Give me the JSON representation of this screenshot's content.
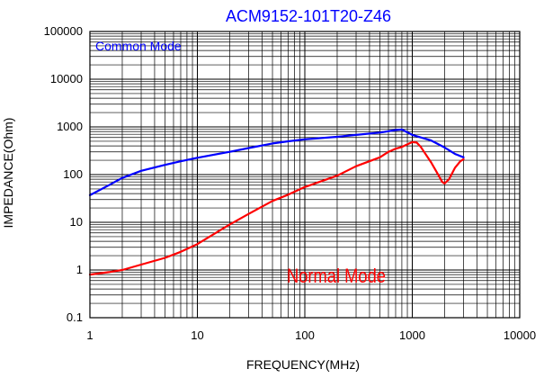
{
  "chart_data": {
    "type": "line",
    "title": "ACM9152-101T20-Z46",
    "xlabel": "FREQUENCY(MHz)",
    "ylabel": "IMPEDANCE(Ohm)",
    "x_scale": "log",
    "y_scale": "log",
    "xlim": [
      1,
      10000
    ],
    "ylim": [
      0.1,
      100000
    ],
    "x_ticks": [
      "1",
      "10",
      "100",
      "1000",
      "10000"
    ],
    "y_ticks": [
      "0.1",
      "1",
      "10",
      "100",
      "1000",
      "10000",
      "100000"
    ],
    "grid": true,
    "title_color": "#0000ff",
    "series": [
      {
        "name": "Common Mode",
        "color": "#0000ff",
        "x": [
          1,
          1.5,
          2,
          3,
          5,
          7,
          10,
          20,
          30,
          50,
          70,
          100,
          200,
          300,
          500,
          700,
          800,
          1000,
          1500,
          2000,
          2500,
          3000
        ],
        "y": [
          37,
          60,
          85,
          120,
          160,
          190,
          225,
          300,
          360,
          450,
          500,
          550,
          620,
          680,
          760,
          860,
          880,
          680,
          520,
          370,
          270,
          230
        ]
      },
      {
        "name": "Normal Mode",
        "color": "#ff0000",
        "x": [
          1,
          1.5,
          2,
          3,
          5,
          7,
          10,
          20,
          30,
          50,
          70,
          100,
          200,
          300,
          500,
          600,
          700,
          800,
          900,
          1000,
          1100,
          1200,
          1500,
          1700,
          1900,
          2000,
          2200,
          2500,
          2800,
          3000
        ],
        "y": [
          0.8,
          0.9,
          1.0,
          1.3,
          1.8,
          2.4,
          3.5,
          9,
          15,
          28,
          38,
          55,
          95,
          150,
          230,
          300,
          350,
          380,
          430,
          480,
          470,
          380,
          180,
          110,
          70,
          65,
          80,
          140,
          190,
          210
        ]
      }
    ],
    "annotations": [
      {
        "text": "Common Mode",
        "color": "#0000ff"
      },
      {
        "text": "Normal Mode",
        "color": "#ff0000"
      }
    ]
  }
}
